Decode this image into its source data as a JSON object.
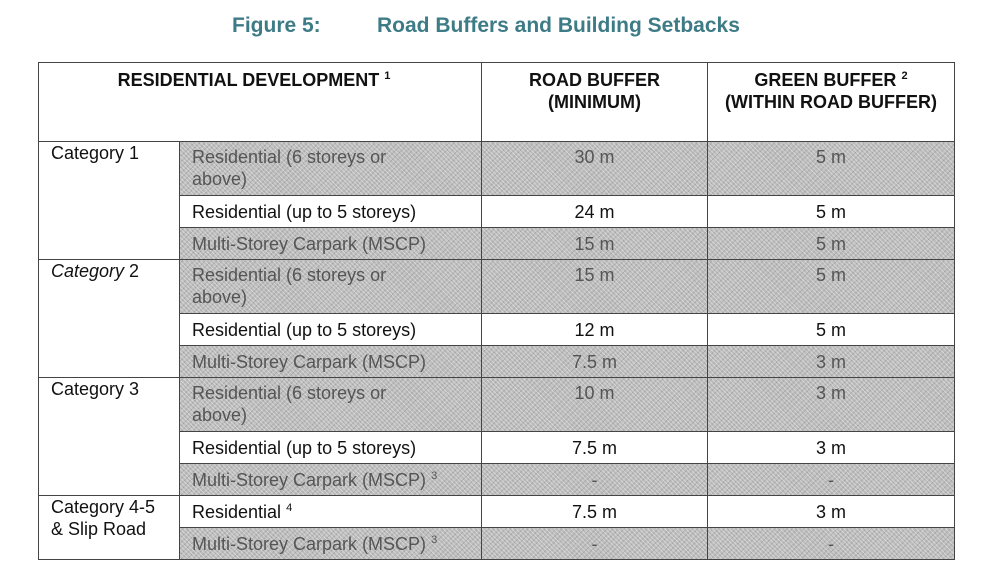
{
  "figure": {
    "number": "Figure 5:",
    "title": "Road Buffers and Building Setbacks"
  },
  "header": {
    "development": "RESIDENTIAL DEVELOPMENT",
    "development_sup": "1",
    "road_buffer": "ROAD BUFFER (MINIMUM)",
    "green_buffer": "GREEN BUFFER",
    "green_buffer_sup": "2",
    "green_buffer_sub": "(WITHIN ROAD BUFFER)"
  },
  "categories": [
    {
      "cat_em": "",
      "cat_rest": "Category 1",
      "rows": [
        {
          "type": "Residential (6 storeys or above)",
          "sup": "",
          "road": "30 m",
          "green": "5 m",
          "shaded": true
        },
        {
          "type": "Residential (up to 5 storeys)",
          "sup": "",
          "road": "24 m",
          "green": "5 m",
          "shaded": false
        },
        {
          "type": "Multi-Storey Carpark (MSCP)",
          "sup": "",
          "road": "15 m",
          "green": "5 m",
          "shaded": true
        }
      ]
    },
    {
      "cat_em": "Category",
      "cat_rest": " 2",
      "rows": [
        {
          "type": "Residential (6 storeys or above)",
          "sup": "",
          "road": "15 m",
          "green": "5 m",
          "shaded": true
        },
        {
          "type": "Residential (up to 5 storeys)",
          "sup": "",
          "road": "12 m",
          "green": "5 m",
          "shaded": false
        },
        {
          "type": "Multi-Storey Carpark (MSCP)",
          "sup": "",
          "road": "7.5 m",
          "green": "3 m",
          "shaded": true
        }
      ]
    },
    {
      "cat_em": "",
      "cat_rest": "Category 3",
      "rows": [
        {
          "type": "Residential (6 storeys or above)",
          "sup": "",
          "road": "10 m",
          "green": "3 m",
          "shaded": true
        },
        {
          "type": "Residential (up to 5 storeys)",
          "sup": "",
          "road": "7.5 m",
          "green": "3 m",
          "shaded": false
        },
        {
          "type": "Multi-Storey Carpark (MSCP)",
          "sup": "3",
          "road": "-",
          "green": "-",
          "shaded": true
        }
      ]
    },
    {
      "cat_em": "",
      "cat_rest": "Category 4-5 & Slip Road",
      "rows": [
        {
          "type": "Residential",
          "sup": "4",
          "road": "7.5 m",
          "green": "3 m",
          "shaded": false
        },
        {
          "type": "Multi-Storey Carpark (MSCP)",
          "sup": "3",
          "road": "-",
          "green": "-",
          "shaded": true
        }
      ]
    }
  ]
}
